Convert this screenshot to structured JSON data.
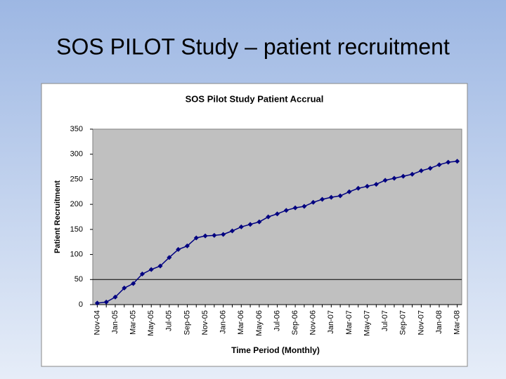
{
  "slide_title": "SOS PILOT Study – patient recruitment",
  "chart_data": {
    "type": "line",
    "title": "SOS Pilot Study Patient Accrual",
    "xlabel": "Time Period (Monthly)",
    "ylabel": "Patient Recruitment",
    "categories": [
      "Nov-04",
      null,
      "Jan-05",
      null,
      "Mar-05",
      null,
      "May-05",
      null,
      "Jul-05",
      null,
      "Sep-05",
      null,
      "Nov-05",
      null,
      "Jan-06",
      null,
      "Mar-06",
      null,
      "May-06",
      null,
      "Jul-06",
      null,
      "Sep-06",
      null,
      "Nov-06",
      null,
      "Jan-07",
      null,
      "Mar-07",
      null,
      "May-07",
      null,
      "Jul-07",
      null,
      "Sep-07",
      null,
      "Nov-07",
      null,
      "Jan-08",
      null,
      "Mar-08"
    ],
    "series": [
      {
        "name": "Patient Recruitment",
        "color": "#000080",
        "values": [
          3,
          5,
          15,
          33,
          42,
          61,
          70,
          77,
          94,
          110,
          117,
          133,
          137,
          138,
          140,
          147,
          155,
          160,
          165,
          175,
          181,
          188,
          193,
          196,
          204,
          210,
          214,
          217,
          225,
          232,
          236,
          240,
          248,
          252,
          256,
          260,
          267,
          272,
          279,
          284,
          286
        ]
      }
    ],
    "ylim": [
      0,
      350
    ],
    "yticks": [
      0,
      50,
      100,
      150,
      200,
      250,
      300,
      350
    ],
    "ygrid": [
      50
    ],
    "plot_background": "#c0c0c0"
  }
}
